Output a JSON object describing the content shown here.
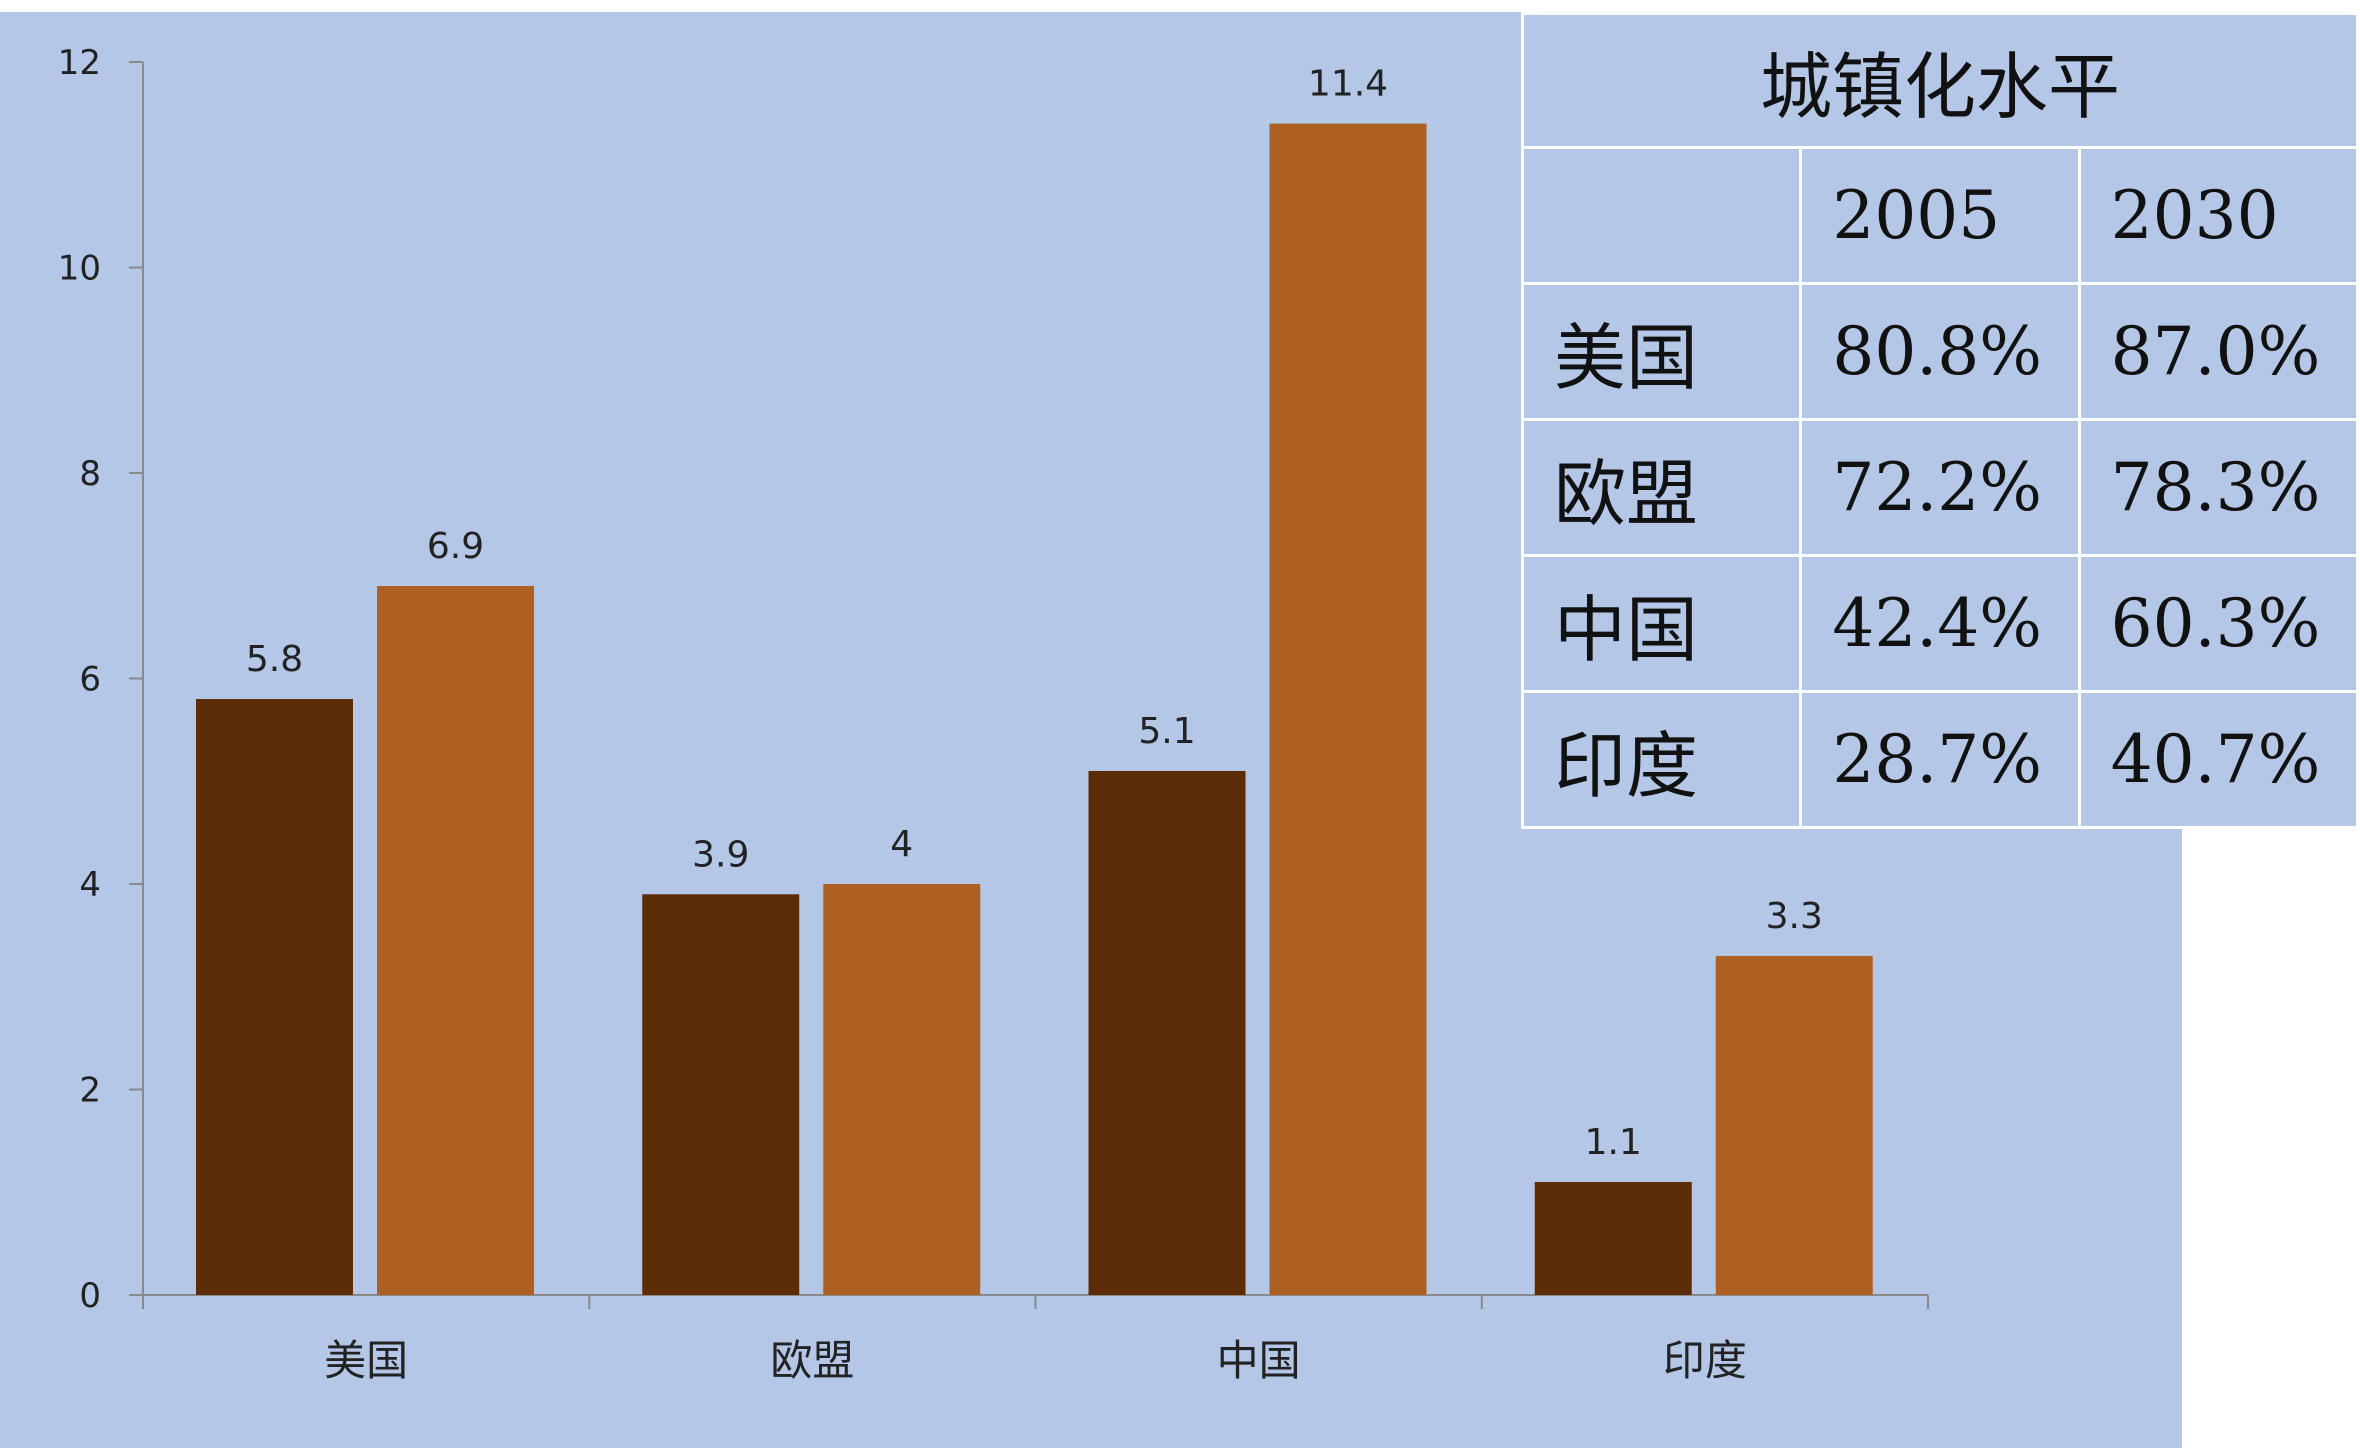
{
  "chart_data": {
    "type": "bar",
    "categories": [
      "美国",
      "欧盟",
      "中国",
      "印度"
    ],
    "series": [
      {
        "values": [
          5.8,
          3.9,
          5.1,
          1.1
        ],
        "color": "#5c2c06"
      },
      {
        "values": [
          6.9,
          4,
          11.4,
          3.3
        ],
        "color": "#ae6022"
      }
    ],
    "ylim": [
      0,
      12
    ],
    "yticks": [
      0,
      2,
      4,
      6,
      8,
      10,
      12
    ],
    "data_labels": [
      [
        "5.8",
        "3.9",
        "5.1",
        "1.1"
      ],
      [
        "6.9",
        "4",
        "11.4",
        "3.3"
      ]
    ],
    "grid": false,
    "background": "#b4c7e7"
  },
  "table": {
    "title": "城镇化水平",
    "columns": [
      "",
      "2005",
      "2030"
    ],
    "rows": [
      {
        "name": "美国",
        "values": [
          "80.8%",
          "87.0%"
        ]
      },
      {
        "name": "欧盟",
        "values": [
          "72.2%",
          "78.3%"
        ]
      },
      {
        "name": "中国",
        "values": [
          "42.4%",
          "60.3%"
        ]
      },
      {
        "name": "印度",
        "values": [
          "28.7%",
          "40.7%"
        ]
      }
    ]
  }
}
